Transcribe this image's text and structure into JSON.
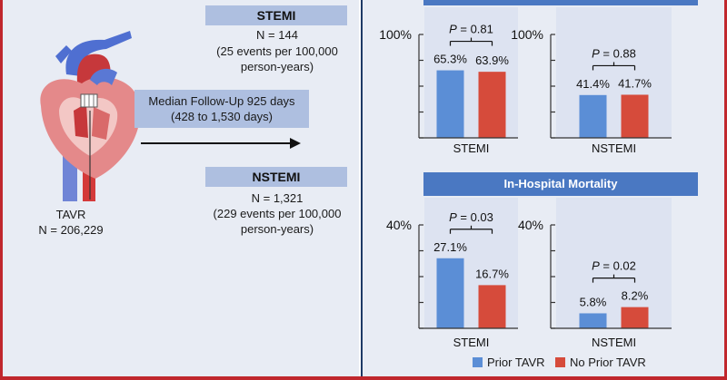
{
  "left": {
    "stemi_label": "STEMI",
    "stemi_n": "N = 144",
    "stemi_rate_line1": "(25 events per 100,000",
    "stemi_rate_line2": "person-years)",
    "followup_line1": "Median Follow-Up 925 days",
    "followup_line2": "(428 to 1,530 days)",
    "nstemi_label": "NSTEMI",
    "nstemi_n": "N = 1,321",
    "nstemi_rate_line1": "(229 events per 100,000",
    "nstemi_rate_line2": "person-years)",
    "tavr_label": "TAVR",
    "tavr_n": "N = 206,229"
  },
  "colors": {
    "prior": "#5b8ed6",
    "no_prior": "#d64b3b",
    "header": "#4a78c2",
    "panel_bg": "#e8ecf4"
  },
  "chart_data": [
    {
      "type": "bar",
      "title": "",
      "ymax_label": "100%",
      "ylim": [
        0,
        100
      ],
      "panels": [
        {
          "xlabel": "STEMI",
          "values": [
            65.3,
            63.9
          ],
          "value_labels": [
            "65.3%",
            "63.9%"
          ],
          "p_label": "P = 0.81"
        },
        {
          "xlabel": "NSTEMI",
          "values": [
            41.4,
            41.7
          ],
          "value_labels": [
            "41.4%",
            "41.7%"
          ],
          "p_label": "P = 0.88"
        }
      ]
    },
    {
      "type": "bar",
      "title": "In-Hospital Mortality",
      "ymax_label": "40%",
      "ylim": [
        0,
        40
      ],
      "panels": [
        {
          "xlabel": "STEMI",
          "values": [
            27.1,
            16.7
          ],
          "value_labels": [
            "27.1%",
            "16.7%"
          ],
          "p_label": "P = 0.03"
        },
        {
          "xlabel": "NSTEMI",
          "values": [
            5.8,
            8.2
          ],
          "value_labels": [
            "5.8%",
            "8.2%"
          ],
          "p_label": "P = 0.02"
        }
      ]
    }
  ],
  "legend": {
    "prior_label": "Prior TAVR",
    "no_prior_label": "No Prior TAVR"
  }
}
